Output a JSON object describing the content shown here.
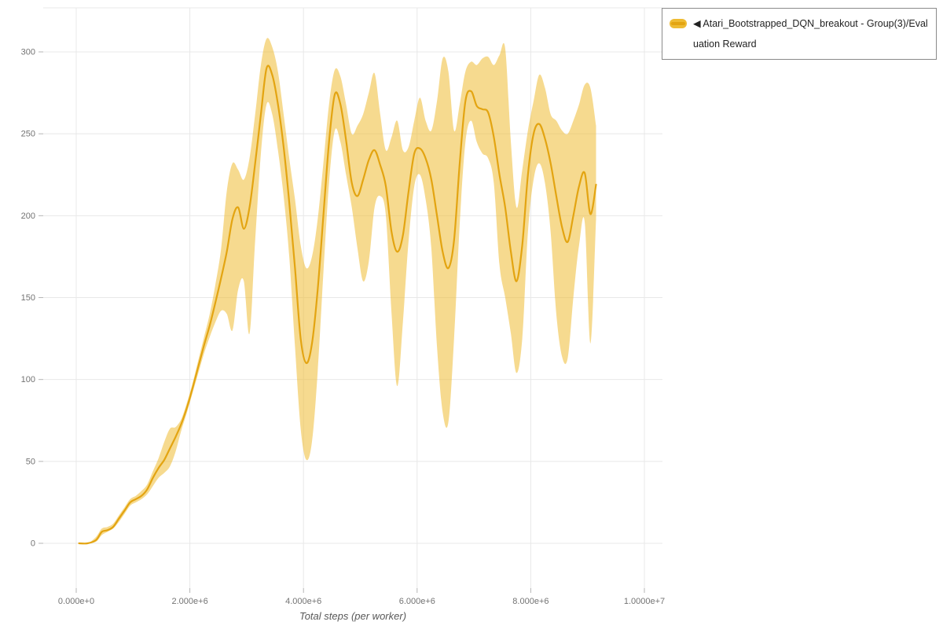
{
  "legend": {
    "marker": "◀",
    "label": "Atari_Bootstrapped_DQN_breakout - Group(3)/Evaluation Reward"
  },
  "chart_data": {
    "type": "line",
    "title": "",
    "xlabel": "Total steps (per worker)",
    "ylabel": "",
    "xlim": [
      0,
      10000000
    ],
    "ylim": [
      0,
      300
    ],
    "grid": true,
    "legend_position": "top-right",
    "x_ticks": [
      {
        "value": 0,
        "label": "0.000e+0"
      },
      {
        "value": 2000000,
        "label": "2.000e+6"
      },
      {
        "value": 4000000,
        "label": "4.000e+6"
      },
      {
        "value": 6000000,
        "label": "6.000e+6"
      },
      {
        "value": 8000000,
        "label": "8.000e+6"
      },
      {
        "value": 10000000,
        "label": "1.0000e+7"
      }
    ],
    "y_ticks": [
      0,
      50,
      100,
      150,
      200,
      250,
      300
    ],
    "colors": {
      "line": "#E3A411",
      "band": "#EEBB33",
      "band_opacity": 0.55,
      "grid": "#E8E8E8",
      "tick_mark": "#B5B5B5",
      "tick_label": "#737373",
      "axis_label": "#595959",
      "legend_border": "#8A8A8A",
      "legend_text": "#222222"
    },
    "series": [
      {
        "name": "Atari_Bootstrapped_DQN_breakout - Group(3)/Evaluation Reward",
        "x": [
          50000,
          200000,
          350000,
          450000,
          550000,
          650000,
          750000,
          850000,
          950000,
          1050000,
          1150000,
          1250000,
          1350000,
          1450000,
          1550000,
          1650000,
          1750000,
          1850000,
          1950000,
          2050000,
          2150000,
          2250000,
          2350000,
          2450000,
          2550000,
          2650000,
          2750000,
          2850000,
          2950000,
          3050000,
          3150000,
          3250000,
          3350000,
          3450000,
          3550000,
          3650000,
          3750000,
          3850000,
          3950000,
          4050000,
          4150000,
          4250000,
          4350000,
          4450000,
          4550000,
          4650000,
          4750000,
          4850000,
          4950000,
          5050000,
          5150000,
          5250000,
          5350000,
          5450000,
          5550000,
          5650000,
          5750000,
          5850000,
          5950000,
          6050000,
          6150000,
          6250000,
          6350000,
          6450000,
          6550000,
          6650000,
          6750000,
          6850000,
          6950000,
          7050000,
          7150000,
          7250000,
          7350000,
          7450000,
          7550000,
          7650000,
          7750000,
          7850000,
          7950000,
          8050000,
          8150000,
          8250000,
          8350000,
          8450000,
          8550000,
          8650000,
          8750000,
          8850000,
          8950000,
          9050000,
          9150000
        ],
        "mean": [
          0,
          0,
          2,
          7,
          8,
          10,
          15,
          20,
          25,
          27,
          29,
          33,
          40,
          46,
          51,
          58,
          65,
          73,
          83,
          95,
          108,
          121,
          133,
          147,
          162,
          178,
          198,
          205,
          192,
          205,
          232,
          262,
          290,
          286,
          268,
          242,
          208,
          168,
          125,
          110,
          122,
          155,
          200,
          245,
          274,
          268,
          246,
          220,
          212,
          222,
          234,
          240,
          231,
          218,
          190,
          178,
          188,
          215,
          238,
          241,
          235,
          222,
          200,
          178,
          168,
          185,
          232,
          270,
          276,
          267,
          265,
          263,
          248,
          225,
          205,
          178,
          160,
          182,
          225,
          250,
          256,
          247,
          232,
          212,
          193,
          184,
          200,
          218,
          226,
          201,
          219
        ],
        "lo": [
          0,
          0,
          1,
          5,
          7,
          9,
          13,
          18,
          23,
          25,
          27,
          30,
          35,
          40,
          43,
          47,
          56,
          69,
          80,
          92,
          104,
          116,
          126,
          135,
          142,
          140,
          130,
          155,
          160,
          128,
          185,
          238,
          268,
          262,
          240,
          212,
          175,
          120,
          70,
          51,
          62,
          105,
          165,
          220,
          252,
          245,
          225,
          205,
          180,
          160,
          172,
          205,
          212,
          200,
          140,
          96,
          135,
          185,
          218,
          225,
          210,
          180,
          120,
          80,
          74,
          125,
          195,
          245,
          258,
          245,
          238,
          235,
          220,
          170,
          150,
          128,
          104,
          125,
          190,
          222,
          232,
          220,
          190,
          140,
          114,
          113,
          150,
          182,
          196,
          122,
          198
        ],
        "hi": [
          0,
          0,
          4,
          9,
          10,
          12,
          17,
          22,
          27,
          29,
          32,
          36,
          44,
          52,
          62,
          70,
          71,
          76,
          86,
          98,
          112,
          126,
          140,
          158,
          180,
          215,
          232,
          228,
          222,
          235,
          262,
          292,
          308,
          303,
          288,
          262,
          235,
          210,
          182,
          168,
          175,
          198,
          232,
          268,
          289,
          285,
          268,
          250,
          255,
          262,
          275,
          287,
          262,
          240,
          248,
          258,
          240,
          242,
          258,
          272,
          258,
          252,
          270,
          296,
          288,
          252,
          268,
          288,
          294,
          292,
          296,
          297,
          292,
          298,
          302,
          245,
          205,
          228,
          252,
          270,
          286,
          278,
          262,
          258,
          252,
          250,
          258,
          268,
          280,
          278,
          255
        ]
      }
    ]
  }
}
